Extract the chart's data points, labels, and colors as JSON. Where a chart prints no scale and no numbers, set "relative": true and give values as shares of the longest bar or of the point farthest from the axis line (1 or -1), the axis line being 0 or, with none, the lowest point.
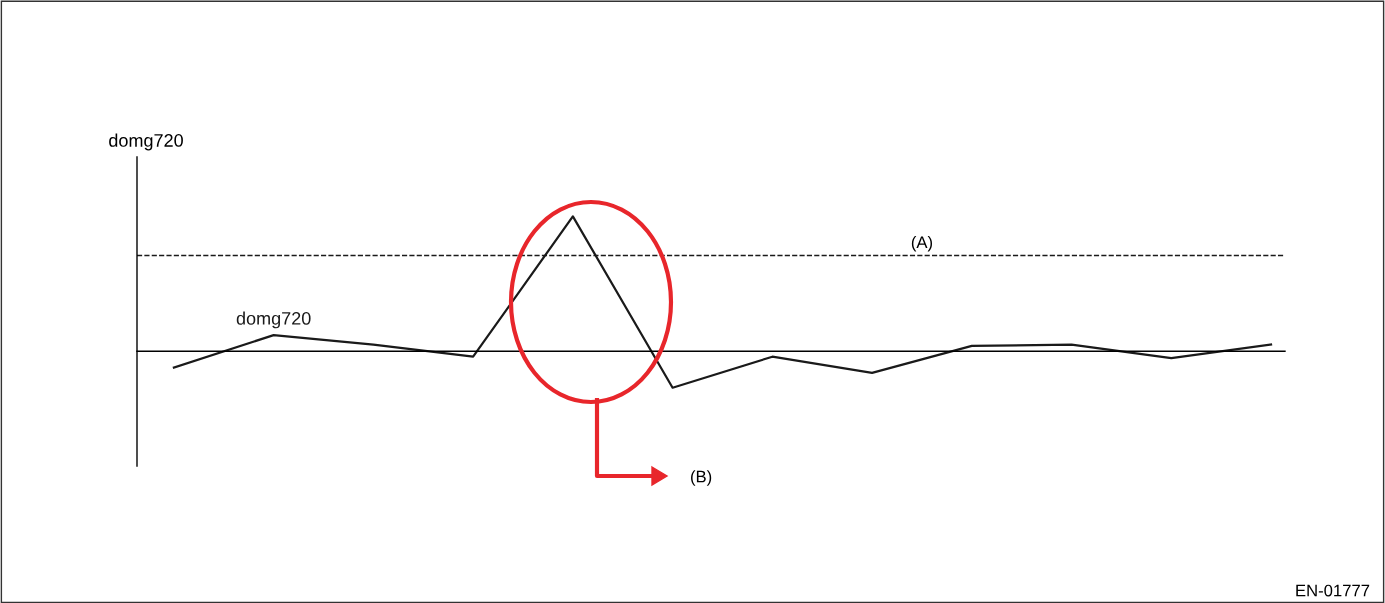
{
  "chart_data": {
    "type": "line",
    "relative": true,
    "ylabel": "domg720",
    "categories": [
      null,
      null,
      null,
      null,
      null,
      null,
      null,
      null,
      null,
      null,
      null,
      null
    ],
    "series": [
      {
        "name": "domg720",
        "color": "#1a1a1a",
        "values": [
          -0.12,
          0.12,
          0.05,
          -0.04,
          1,
          -0.27,
          -0.04,
          -0.16,
          0.04,
          0.05,
          -0.05,
          0.05
        ]
      }
    ],
    "ref_lines": [
      {
        "axis": "y",
        "value": 0.71,
        "label": "(A)",
        "color": "#1a1a1a",
        "line_style": "dashed"
      }
    ],
    "annotations": [
      "(B)",
      "EN-01777"
    ],
    "legend": false,
    "marker": "none",
    "line_style": "solid"
  }
}
